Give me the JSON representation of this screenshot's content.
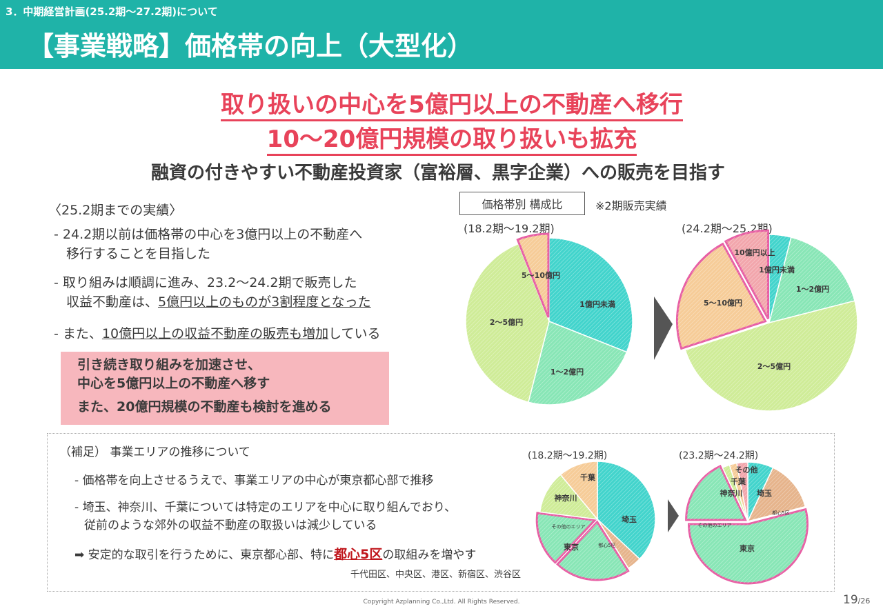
{
  "header": {
    "section": "3．中期経営計画(25.2期～27.2期)について",
    "title": "【事業戦略】価格帯の向上（大型化）"
  },
  "headlines": {
    "line1": "取り扱いの中心を5億円以上の不動産へ移行",
    "line2": "10～20億円規模の取り扱いも拡充",
    "line3": "融資の付きやすい不動産投資家（富裕層、黒字企業）への販売を目指す"
  },
  "results": {
    "title": "〈25.2期までの実績〉",
    "b1_l1": "- 24.2期以前は価格帯の中心を3億円以上の不動産へ",
    "b1_l2": "移行することを目指した",
    "b2_l1": "- 取り組みは順調に進み、23.2～24.2期で販売した",
    "b2_l2a": "収益不動産は、",
    "b2_l2b": "5億円以上のものが3割程度となった",
    "b3a": "- また、",
    "b3b": "10億円以上の収益不動産の販売も増加",
    "b3c": "している"
  },
  "callout": {
    "l1": "引き続き取り組みを加速させ、",
    "l2": "中心を5億円以上の不動産へ移す",
    "l3": "また、20億円規模の不動産も検討を進める"
  },
  "price_section": {
    "legend": "価格帯別 構成比",
    "note": "※2期販売実績",
    "period_left": "(18.2期～19.2期)",
    "period_right": "(24.2期～25.2期)"
  },
  "supplement": {
    "title": "（補足） 事業エリアの推移について",
    "b1": "- 価格帯を向上させるうえで、事業エリアの中心が東京都心部で推移",
    "b2_l1": "- 埼玉、神奈川、千葉については特定のエリアを中心に取り組んでおり、",
    "b2_l2": "従前のような郊外の収益不動産の取扱いは減少している",
    "b3a": "➡ 安定的な取引を行うために、東京都心部、特に",
    "b3b": "都心5区",
    "b3c": "の取組みを増やす",
    "wards": "千代田区、中央区、港区、新宿区、渋谷区",
    "period_left": "(18.2期～19.2期)",
    "period_right": "(23.2期～24.2期)"
  },
  "footer": {
    "copyright": "Copyright Azplanning Co.,Ltd. All Rights Reserved.",
    "page": "19",
    "total": "/26"
  },
  "colors": {
    "teal": "#1fb3a8",
    "headline_red": "#e8435a",
    "callout_pink": "#f7b7bd",
    "highlight_pink": "#e75fa4"
  },
  "chart_data": [
    {
      "type": "pie",
      "id": "price_left",
      "slices": [
        {
          "label": "1億円未満",
          "value": 31,
          "color": "#42d4cc",
          "highlight": false
        },
        {
          "label": "1～2億円",
          "value": 23,
          "color": "#88e6b6",
          "highlight": false
        },
        {
          "label": "2～5億円",
          "value": 40,
          "color": "#cfec98",
          "highlight": false
        },
        {
          "label": "5～10億円",
          "value": 6,
          "color": "#f6cc98",
          "highlight": true
        }
      ]
    },
    {
      "type": "pie",
      "id": "price_right",
      "slices": [
        {
          "label": "1億円未満",
          "value": 4,
          "color": "#42d4cc",
          "highlight": false
        },
        {
          "label": "1～2億円",
          "value": 17,
          "color": "#88e6b6",
          "highlight": false
        },
        {
          "label": "2～5億円",
          "value": 49,
          "color": "#cfec98",
          "highlight": false
        },
        {
          "label": "5～10億円",
          "value": 22,
          "color": "#f6cc98",
          "highlight": true
        },
        {
          "label": "10億円以上",
          "value": 8,
          "color": "#f2a6ac",
          "highlight": true
        }
      ]
    },
    {
      "type": "pie",
      "id": "area_left",
      "slices": [
        {
          "label": "埼玉",
          "value": 37,
          "color": "#42d4cc",
          "highlight": false
        },
        {
          "label": "都心5区",
          "value": 4,
          "color": "#e6b48c",
          "highlight": false
        },
        {
          "label": "東京",
          "value": 21,
          "color": "#88e6b6",
          "highlight": true
        },
        {
          "label": "その他のエリア",
          "value": 15,
          "color": "#88e6b6",
          "highlight": true
        },
        {
          "label": "神奈川",
          "value": 12,
          "color": "#cfec98",
          "highlight": false
        },
        {
          "label": "千葉",
          "value": 11,
          "color": "#f6cc98",
          "highlight": false
        }
      ]
    },
    {
      "type": "pie",
      "id": "area_right",
      "slices": [
        {
          "label": "埼玉",
          "value": 7,
          "color": "#42d4cc",
          "highlight": false
        },
        {
          "label": "都心5区",
          "value": 14,
          "color": "#e6b48c",
          "highlight": false
        },
        {
          "label": "東京",
          "value": 54,
          "color": "#88e6b6",
          "highlight": true
        },
        {
          "label": "その他のエリア",
          "value": 18,
          "color": "#88e6b6",
          "highlight": true
        },
        {
          "label": "神奈川",
          "value": 2,
          "color": "#cfec98",
          "highlight": false
        },
        {
          "label": "千葉",
          "value": 2,
          "color": "#f6cc98",
          "highlight": false
        },
        {
          "label": "その他",
          "value": 3,
          "color": "#f2a6ac",
          "highlight": false
        }
      ]
    }
  ]
}
